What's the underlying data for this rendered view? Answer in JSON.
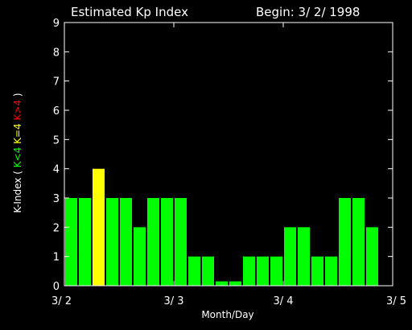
{
  "chart_data": {
    "type": "bar",
    "title": "Estimated Kp Index",
    "subtitle": "Begin: 3/ 2/ 1998",
    "xlabel": "Month/Day",
    "ylabel": {
      "prefix": "K-Index (",
      "k_low": "K<4",
      "k_mid": "K=4",
      "k_high": "K>4",
      "suffix": ")"
    },
    "ylim": [
      0,
      9
    ],
    "yticks": [
      "0",
      "1",
      "2",
      "3",
      "4",
      "5",
      "6",
      "7",
      "8",
      "9"
    ],
    "x_tick_labels": [
      "3/ 2",
      "3/ 3",
      "3/ 4",
      "3/ 5"
    ],
    "values": [
      3,
      3,
      4,
      3,
      3,
      2,
      3,
      3,
      3,
      1,
      1,
      0.15,
      0.15,
      1,
      1,
      1,
      2,
      2,
      1,
      1,
      3,
      3,
      2,
      0
    ],
    "interval_hours": 3,
    "colors": {
      "background": "#000000",
      "axes": "#ffffff",
      "k_below_4": "#00ff00",
      "k_equal_4": "#ffff00",
      "k_above_4": "#ff0000"
    }
  }
}
